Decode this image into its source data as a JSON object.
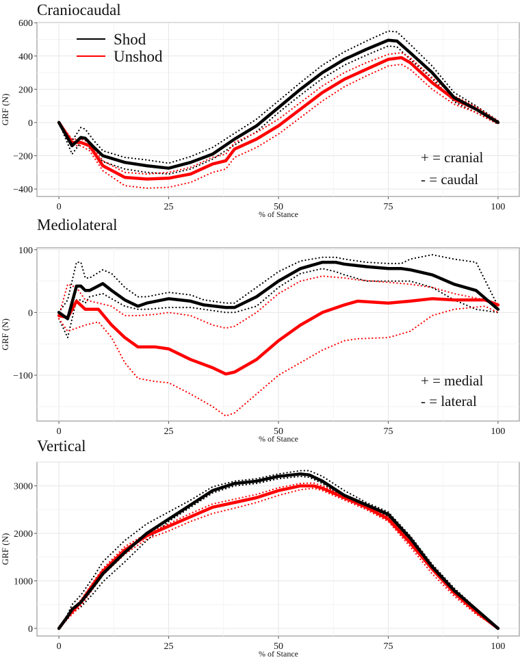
{
  "chart_data": [
    {
      "type": "line",
      "title": "Craniocaudal",
      "xlabel": "% of Stance",
      "ylabel": "GRF (N)",
      "xlim": [
        -5,
        105
      ],
      "ylim": [
        -445,
        601
      ],
      "xticks": [
        "0",
        "25",
        "50",
        "75",
        "100"
      ],
      "yticks": [
        "-400",
        "-200",
        "0",
        "200",
        "400",
        "600"
      ],
      "grid": true,
      "legend": {
        "placement": "top-left",
        "entries": [
          "Shod",
          "Unshod"
        ]
      },
      "annotations": [
        "+ = cranial",
        "- = caudal"
      ],
      "series": [
        {
          "name": "Shod",
          "color": "#000000",
          "x": [
            0,
            3,
            5,
            6,
            8,
            10,
            15,
            20,
            25,
            30,
            35,
            40,
            45,
            50,
            55,
            60,
            65,
            70,
            75,
            77,
            80,
            85,
            90,
            95,
            100
          ],
          "values": [
            0,
            -140,
            -90,
            -95,
            -150,
            -200,
            -240,
            -260,
            -275,
            -240,
            -190,
            -100,
            -20,
            90,
            200,
            300,
            380,
            440,
            495,
            490,
            420,
            300,
            150,
            80,
            0
          ],
          "upper": [
            0,
            -110,
            -30,
            -40,
            -110,
            -170,
            -210,
            -225,
            -245,
            -205,
            -150,
            -65,
            20,
            130,
            240,
            345,
            425,
            490,
            550,
            545,
            470,
            340,
            180,
            100,
            10
          ],
          "lower": [
            0,
            -190,
            -120,
            -130,
            -180,
            -235,
            -280,
            -300,
            -310,
            -280,
            -220,
            -135,
            -55,
            60,
            165,
            265,
            345,
            405,
            460,
            455,
            380,
            265,
            125,
            60,
            -10
          ]
        },
        {
          "name": "Unshod",
          "color": "#ff0000",
          "x": [
            0,
            3,
            5,
            7,
            10,
            15,
            20,
            25,
            30,
            35,
            38,
            40,
            45,
            50,
            55,
            60,
            65,
            70,
            75,
            78,
            80,
            85,
            90,
            95,
            100
          ],
          "values": [
            0,
            -120,
            -120,
            -140,
            -260,
            -330,
            -340,
            -335,
            -310,
            -250,
            -230,
            -160,
            -100,
            -20,
            80,
            180,
            260,
            320,
            380,
            390,
            360,
            240,
            140,
            80,
            0
          ],
          "upper": [
            0,
            -100,
            -100,
            -120,
            -230,
            -300,
            -310,
            -300,
            -270,
            -210,
            -190,
            -120,
            -60,
            20,
            120,
            220,
            300,
            360,
            410,
            420,
            390,
            270,
            160,
            95,
            10
          ],
          "lower": [
            0,
            -140,
            -140,
            -170,
            -290,
            -380,
            -395,
            -390,
            -360,
            -300,
            -280,
            -210,
            -150,
            -70,
            30,
            130,
            215,
            280,
            340,
            350,
            320,
            200,
            110,
            60,
            -10
          ]
        }
      ]
    },
    {
      "type": "line",
      "title": "Mediolateral",
      "xlabel": "% of Stance",
      "ylabel": "GRF (N)",
      "xlim": [
        -5,
        105
      ],
      "ylim": [
        -173,
        103
      ],
      "xticks": [
        "0",
        "25",
        "50",
        "75",
        "100"
      ],
      "yticks": [
        "-100",
        "0",
        "100"
      ],
      "grid": true,
      "annotations": [
        "+ = medial",
        "- = lateral"
      ],
      "series": [
        {
          "name": "Shod",
          "color": "#000000",
          "x": [
            0,
            2,
            4,
            5,
            6,
            7,
            10,
            12,
            15,
            18,
            20,
            25,
            30,
            33,
            38,
            40,
            45,
            50,
            55,
            60,
            63,
            65,
            70,
            75,
            78,
            80,
            85,
            90,
            95,
            100
          ],
          "values": [
            0,
            -10,
            42,
            42,
            35,
            35,
            46,
            35,
            20,
            10,
            15,
            22,
            18,
            12,
            8,
            8,
            25,
            50,
            70,
            80,
            80,
            77,
            73,
            70,
            70,
            68,
            60,
            45,
            35,
            5
          ],
          "upper": [
            0,
            20,
            80,
            80,
            55,
            55,
            68,
            62,
            40,
            25,
            25,
            32,
            28,
            20,
            15,
            15,
            40,
            65,
            82,
            88,
            88,
            85,
            80,
            78,
            78,
            85,
            92,
            85,
            80,
            10
          ],
          "lower": [
            -10,
            -40,
            20,
            20,
            15,
            25,
            30,
            22,
            10,
            5,
            5,
            8,
            8,
            5,
            0,
            0,
            10,
            40,
            62,
            70,
            65,
            60,
            50,
            50,
            50,
            50,
            40,
            20,
            5,
            0
          ]
        },
        {
          "name": "Unshod",
          "color": "#ff0000",
          "x": [
            0,
            2,
            4,
            6,
            9,
            12,
            15,
            18,
            22,
            25,
            30,
            35,
            38,
            40,
            45,
            50,
            55,
            60,
            65,
            68,
            75,
            80,
            85,
            90,
            97,
            100
          ],
          "values": [
            -5,
            -8,
            18,
            5,
            5,
            -20,
            -40,
            -55,
            -55,
            -58,
            -75,
            -88,
            -98,
            -95,
            -75,
            -45,
            -20,
            0,
            12,
            18,
            15,
            18,
            22,
            20,
            20,
            12
          ],
          "upper": [
            -5,
            45,
            40,
            20,
            15,
            10,
            -5,
            -5,
            -3,
            0,
            -5,
            -20,
            -25,
            -22,
            0,
            30,
            50,
            58,
            55,
            52,
            48,
            45,
            40,
            30,
            20,
            10
          ],
          "lower": [
            -10,
            -30,
            -25,
            -20,
            -15,
            -40,
            -80,
            -105,
            -110,
            -112,
            -130,
            -150,
            -165,
            -160,
            -130,
            -100,
            -80,
            -60,
            -45,
            -42,
            -40,
            -30,
            -5,
            5,
            10,
            0
          ]
        }
      ]
    },
    {
      "type": "line",
      "title": "Vertical",
      "xlabel": "% of Stance",
      "ylabel": "GRF (N)",
      "xlim": [
        -5,
        105
      ],
      "ylim": [
        -160,
        3500
      ],
      "xticks": [
        "0",
        "25",
        "50",
        "75",
        "100"
      ],
      "yticks": [
        "0",
        "1000",
        "2000",
        "3000"
      ],
      "grid": true,
      "series": [
        {
          "name": "Shod",
          "color": "#000000",
          "x": [
            0,
            2,
            3,
            5,
            8,
            10,
            15,
            20,
            25,
            30,
            35,
            40,
            45,
            50,
            55,
            57,
            60,
            65,
            70,
            75,
            80,
            85,
            90,
            95,
            100
          ],
          "values": [
            0,
            250,
            400,
            550,
            900,
            1150,
            1600,
            2000,
            2300,
            2600,
            2900,
            3050,
            3100,
            3200,
            3250,
            3230,
            3100,
            2800,
            2600,
            2400,
            1900,
            1300,
            800,
            400,
            0
          ],
          "upper": [
            0,
            300,
            500,
            700,
            1100,
            1400,
            1850,
            2200,
            2450,
            2700,
            2980,
            3100,
            3150,
            3250,
            3320,
            3320,
            3200,
            2900,
            2650,
            2450,
            1950,
            1350,
            850,
            420,
            0
          ],
          "lower": [
            0,
            200,
            320,
            450,
            750,
            980,
            1400,
            1850,
            2250,
            2550,
            2850,
            3000,
            3050,
            3150,
            3200,
            3180,
            3050,
            2750,
            2550,
            2350,
            1850,
            1250,
            760,
            370,
            0
          ]
        },
        {
          "name": "Unshod",
          "color": "#ff0000",
          "x": [
            0,
            2,
            5,
            8,
            10,
            15,
            20,
            25,
            30,
            35,
            40,
            45,
            50,
            55,
            58,
            60,
            65,
            70,
            75,
            80,
            85,
            90,
            95,
            100
          ],
          "values": [
            0,
            250,
            550,
            950,
            1200,
            1650,
            1950,
            2150,
            2350,
            2550,
            2650,
            2750,
            2900,
            3000,
            3000,
            2950,
            2750,
            2550,
            2300,
            1800,
            1250,
            750,
            350,
            0
          ],
          "upper": [
            0,
            280,
            600,
            1000,
            1260,
            1720,
            2000,
            2200,
            2420,
            2620,
            2720,
            2820,
            2960,
            3050,
            3060,
            3000,
            2800,
            2600,
            2350,
            1850,
            1300,
            800,
            380,
            0
          ],
          "lower": [
            0,
            200,
            480,
            860,
            1120,
            1560,
            1880,
            2050,
            2250,
            2420,
            2530,
            2650,
            2800,
            2920,
            2950,
            2900,
            2700,
            2500,
            2250,
            1720,
            1150,
            680,
            300,
            0
          ]
        }
      ]
    }
  ]
}
